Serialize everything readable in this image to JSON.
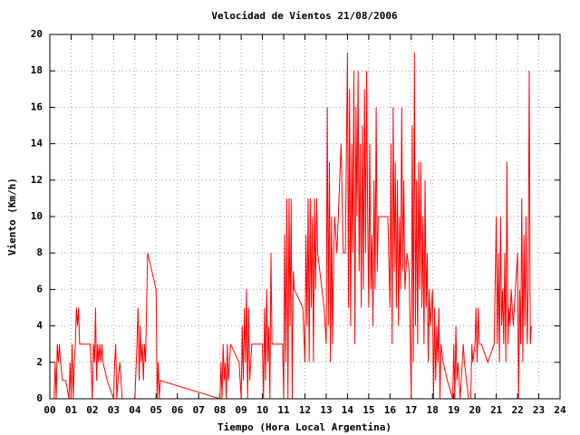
{
  "chart_data": {
    "type": "line",
    "title": "Velocidad de Vientos 21/08/2006",
    "x_label": "Tiempo (Hora Local Argentina)",
    "y_label": "Viento (Km/h)",
    "color": "#ff0000",
    "grid": true,
    "xlim": [
      0,
      24
    ],
    "ylim": [
      0,
      20
    ],
    "xticks": [
      {
        "value": 0,
        "label": "00"
      },
      {
        "value": 1,
        "label": "01"
      },
      {
        "value": 2,
        "label": "02"
      },
      {
        "value": 3,
        "label": "03"
      },
      {
        "value": 4,
        "label": "04"
      },
      {
        "value": 5,
        "label": "05"
      },
      {
        "value": 6,
        "label": "06"
      },
      {
        "value": 7,
        "label": "07"
      },
      {
        "value": 8,
        "label": "08"
      },
      {
        "value": 9,
        "label": "09"
      },
      10,
      11,
      12,
      13,
      14,
      15,
      16,
      17,
      18,
      19,
      20,
      21,
      22,
      23,
      24
    ],
    "yticks": [
      0,
      2,
      4,
      6,
      8,
      10,
      12,
      14,
      16,
      18,
      20
    ],
    "x": [
      0.2,
      0.25,
      0.3,
      0.35,
      0.4,
      0.45,
      0.5,
      0.6,
      0.75,
      0.9,
      0.95,
      1.0,
      1.05,
      1.1,
      1.15,
      1.2,
      1.25,
      1.3,
      1.35,
      1.4,
      1.5,
      1.9,
      2.0,
      2.05,
      2.1,
      2.15,
      2.2,
      2.25,
      2.3,
      2.35,
      2.4,
      2.45,
      2.5,
      2.7,
      3.0,
      3.05,
      3.1,
      3.15,
      3.2,
      3.3,
      3.4,
      4.0,
      4.1,
      4.15,
      4.2,
      4.25,
      4.3,
      4.35,
      4.4,
      4.45,
      4.5,
      4.55,
      4.6,
      5.0,
      5.05,
      5.1,
      5.15,
      5.2,
      8.0,
      8.05,
      8.1,
      8.15,
      8.2,
      8.25,
      8.3,
      8.35,
      8.4,
      8.45,
      8.5,
      8.9,
      9.0,
      9.05,
      9.1,
      9.15,
      9.2,
      9.25,
      9.3,
      9.35,
      9.4,
      9.5,
      9.6,
      10.0,
      10.05,
      10.1,
      10.15,
      10.2,
      10.25,
      10.3,
      10.35,
      10.4,
      10.45,
      10.5,
      10.95,
      11.0,
      11.05,
      11.1,
      11.15,
      11.2,
      11.25,
      11.3,
      11.35,
      11.4,
      11.45,
      11.5,
      11.9,
      12.0,
      12.05,
      12.1,
      12.15,
      12.2,
      12.25,
      12.3,
      12.35,
      12.4,
      12.45,
      12.5,
      12.55,
      12.6,
      12.9,
      13.0,
      13.05,
      13.1,
      13.15,
      13.2,
      13.25,
      13.3,
      13.35,
      13.4,
      13.5,
      13.7,
      13.8,
      13.9,
      14.0,
      14.05,
      14.1,
      14.15,
      14.2,
      14.25,
      14.3,
      14.35,
      14.4,
      14.45,
      14.5,
      14.55,
      14.6,
      14.65,
      14.7,
      14.75,
      14.8,
      14.85,
      14.9,
      14.95,
      15.0,
      15.05,
      15.1,
      15.15,
      15.2,
      15.25,
      15.3,
      15.35,
      15.4,
      15.45,
      15.5,
      15.9,
      16.0,
      16.05,
      16.1,
      16.15,
      16.2,
      16.25,
      16.3,
      16.35,
      16.4,
      16.45,
      16.5,
      16.55,
      16.6,
      16.65,
      16.7,
      16.8,
      16.9,
      17.0,
      17.05,
      17.1,
      17.15,
      17.2,
      17.25,
      17.3,
      17.35,
      17.4,
      17.45,
      17.5,
      17.55,
      17.6,
      17.65,
      17.7,
      17.75,
      17.8,
      17.85,
      17.9,
      18.0,
      18.05,
      18.1,
      18.15,
      18.2,
      18.25,
      18.3,
      18.35,
      18.4,
      18.5,
      18.7,
      18.95,
      19.0,
      19.05,
      19.1,
      19.15,
      19.2,
      19.3,
      19.45,
      19.5,
      19.7,
      19.8,
      19.85,
      19.9,
      20.0,
      20.05,
      20.1,
      20.15,
      20.2,
      20.3,
      20.6,
      20.9,
      21.0,
      21.05,
      21.1,
      21.15,
      21.2,
      21.25,
      21.3,
      21.35,
      21.4,
      21.45,
      21.5,
      21.55,
      21.6,
      21.65,
      21.7,
      21.8,
      21.9,
      22.0,
      22.05,
      22.1,
      22.15,
      22.2,
      22.25,
      22.3,
      22.35,
      22.4,
      22.45,
      22.5,
      22.55,
      22.6,
      22.65
    ],
    "values": [
      0,
      2,
      0,
      3,
      2,
      3,
      2,
      1,
      1,
      0,
      2,
      0,
      3,
      0,
      2,
      3,
      5,
      4,
      5,
      3,
      3,
      3,
      0,
      3,
      2,
      5,
      1,
      3,
      2,
      3,
      2,
      3,
      2,
      1,
      0,
      2,
      3,
      0,
      1,
      2,
      0,
      0,
      3,
      5,
      1,
      4,
      2,
      3,
      1,
      3,
      2,
      5,
      8,
      6,
      0,
      2,
      0,
      1,
      0,
      2,
      0,
      3,
      1,
      2,
      0,
      3,
      1,
      2,
      3,
      2,
      0,
      4,
      1,
      5,
      2,
      6,
      0,
      5,
      1,
      3,
      3,
      3,
      0,
      5,
      1,
      6,
      2,
      4,
      0,
      8,
      3,
      3,
      3,
      0,
      9,
      2,
      11,
      0,
      11,
      4,
      11,
      0,
      7,
      6,
      5,
      2,
      9,
      4,
      11,
      2,
      11,
      5,
      10,
      2,
      11,
      6,
      11,
      8,
      5,
      3,
      16,
      4,
      13,
      2,
      10,
      3,
      8,
      10,
      8,
      14,
      8,
      8,
      19,
      5,
      17,
      4,
      14,
      8,
      18,
      3,
      16,
      10,
      18,
      7,
      14,
      5,
      15,
      6,
      17,
      8,
      18,
      10,
      5,
      14,
      6,
      9,
      4,
      12,
      6,
      16,
      7,
      10,
      10,
      10,
      5,
      14,
      3,
      16,
      7,
      13,
      5,
      12,
      4,
      10,
      6,
      16,
      7,
      12,
      6,
      8,
      7,
      0,
      15,
      2,
      19,
      4,
      12,
      3,
      13,
      6,
      13,
      5,
      10,
      3,
      12,
      5,
      8,
      2,
      6,
      4,
      6,
      0,
      5,
      1,
      4,
      2,
      5,
      0,
      3,
      2,
      1,
      0,
      3,
      0,
      4,
      1,
      2,
      0,
      3,
      2,
      0,
      0,
      3,
      2,
      3,
      5,
      2,
      5,
      3,
      3,
      2,
      3,
      10,
      3,
      8,
      2,
      10,
      4,
      6,
      3,
      8,
      2,
      13,
      3,
      5,
      4,
      6,
      4,
      6,
      8,
      0,
      6,
      3,
      11,
      2,
      9,
      4,
      10,
      3,
      6,
      18,
      3,
      4
    ]
  }
}
